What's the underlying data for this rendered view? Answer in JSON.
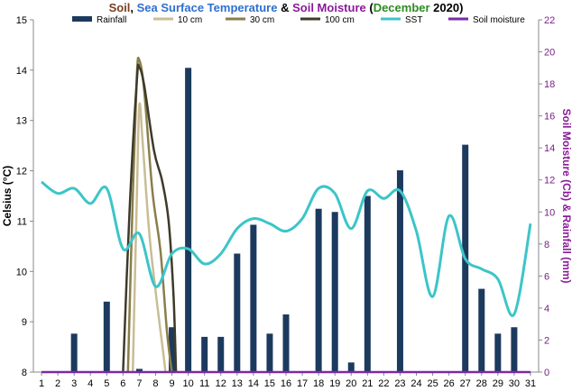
{
  "title_parts": [
    {
      "text": "Soil",
      "color": "#7b3f1e"
    },
    {
      "text": ", ",
      "color": "#000000"
    },
    {
      "text": "Sea Surface Temperature",
      "color": "#2e6fd1"
    },
    {
      "text": " & ",
      "color": "#000000"
    },
    {
      "text": "Soil Moisture",
      "color": "#8b1a9a"
    },
    {
      "text": " (",
      "color": "#000000"
    },
    {
      "text": "December",
      "color": "#2e8b24"
    },
    {
      "text": " 2020)",
      "color": "#000000"
    }
  ],
  "chart_data": {
    "type": "bar+line",
    "x": [
      1,
      2,
      3,
      4,
      5,
      6,
      7,
      8,
      9,
      10,
      11,
      12,
      13,
      14,
      15,
      16,
      17,
      18,
      19,
      20,
      21,
      22,
      23,
      24,
      25,
      26,
      27,
      28,
      29,
      30,
      31
    ],
    "ylabel": "Celsius (°C)",
    "y2label": "Soil Moisture (Cb) & Rainfall (mm)",
    "ylim": [
      8,
      15
    ],
    "y2lim": [
      0,
      22
    ],
    "yticks": [
      8,
      9,
      10,
      11,
      12,
      13,
      14,
      15
    ],
    "y2ticks": [
      0,
      2,
      4,
      6,
      8,
      10,
      12,
      14,
      16,
      18,
      20,
      22
    ],
    "legend_position": "top",
    "series": [
      {
        "name": "Rainfall",
        "axis": "right",
        "kind": "bar",
        "color": "#1b3a5e",
        "values": [
          0,
          0,
          2.4,
          0,
          4.4,
          0,
          0.2,
          0,
          2.8,
          19,
          2.2,
          2.2,
          7.4,
          9.2,
          2.4,
          3.6,
          0,
          10.2,
          10,
          0.6,
          11,
          0,
          12.6,
          0,
          0,
          0,
          14.2,
          5.2,
          2.4,
          2.8,
          0
        ]
      },
      {
        "name": "10 cm",
        "axis": "left",
        "kind": "line",
        "color": "#c9bd95",
        "points": [
          [
            6.6,
            8
          ],
          [
            6.85,
            11.5
          ],
          [
            7.0,
            13.3
          ],
          [
            7.2,
            12.6
          ],
          [
            7.6,
            10.8
          ],
          [
            8.0,
            9.6
          ],
          [
            8.5,
            8.3
          ],
          [
            8.6,
            8
          ]
        ]
      },
      {
        "name": "30 cm",
        "axis": "left",
        "kind": "line",
        "color": "#8a7e4a",
        "points": [
          [
            6.3,
            8
          ],
          [
            6.6,
            11.5
          ],
          [
            6.85,
            13.9
          ],
          [
            7.0,
            14.2
          ],
          [
            7.3,
            13.6
          ],
          [
            7.8,
            11.6
          ],
          [
            8.3,
            10.4
          ],
          [
            8.7,
            8.8
          ],
          [
            9.0,
            8
          ]
        ]
      },
      {
        "name": "100 cm",
        "axis": "left",
        "kind": "line",
        "color": "#3d3a2a",
        "points": [
          [
            6.0,
            8
          ],
          [
            6.4,
            11.2
          ],
          [
            6.85,
            13.8
          ],
          [
            7.0,
            14.05
          ],
          [
            7.3,
            13.7
          ],
          [
            7.9,
            12.4
          ],
          [
            8.4,
            11.8
          ],
          [
            8.8,
            11.0
          ],
          [
            9.1,
            9.5
          ],
          [
            9.25,
            8
          ]
        ]
      },
      {
        "name": "SST",
        "axis": "left",
        "kind": "line",
        "color": "#3cc5c8",
        "values": [
          11.78,
          11.55,
          11.65,
          11.35,
          11.65,
          10.45,
          10.75,
          9.7,
          10.35,
          10.45,
          10.15,
          10.35,
          10.85,
          11.05,
          10.95,
          10.8,
          11.05,
          11.65,
          11.55,
          10.85,
          11.6,
          11.45,
          11.6,
          10.8,
          9.5,
          11.1,
          10.25,
          10.05,
          9.85,
          9.15,
          10.95
        ]
      },
      {
        "name": "Soil moisture",
        "axis": "right",
        "kind": "line",
        "color": "#7a2aa5",
        "values": [
          0,
          0,
          0,
          0,
          0,
          0,
          0,
          0,
          0,
          0,
          0,
          0,
          0,
          0,
          0,
          0,
          0,
          0,
          0,
          0,
          0,
          0,
          0,
          0,
          0,
          0,
          0,
          0,
          0,
          0,
          0
        ]
      }
    ]
  },
  "colors": {
    "right_axis": "#8b1a9a",
    "axis_line": "#888888"
  }
}
